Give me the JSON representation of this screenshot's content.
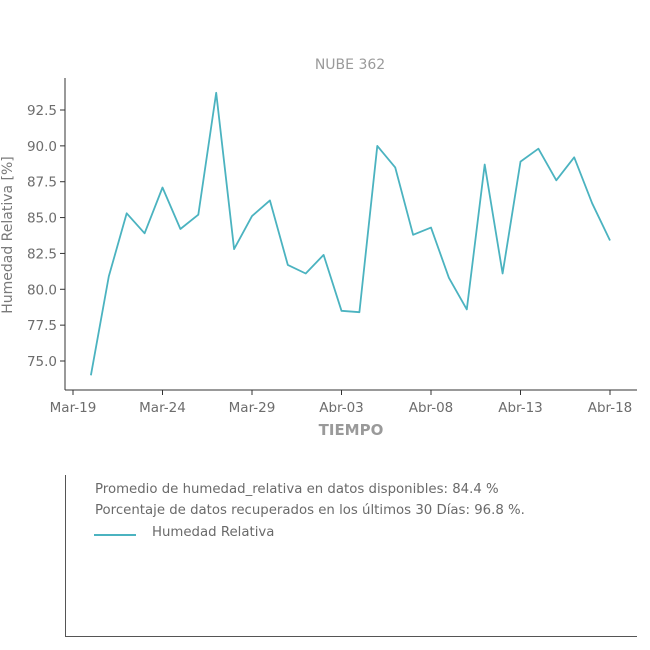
{
  "chart_data": {
    "type": "line",
    "title": "NUBE 362",
    "xlabel": "TIEMPO",
    "ylabel": "Humedad Relativa [%]",
    "x_ticks": [
      "Mar-19",
      "Mar-24",
      "Mar-29",
      "Abr-03",
      "Abr-08",
      "Abr-13",
      "Abr-18"
    ],
    "y_ticks": [
      "75.0",
      "77.5",
      "80.0",
      "82.5",
      "85.0",
      "87.5",
      "90.0",
      "92.5"
    ],
    "ylim": [
      73.0,
      95.0
    ],
    "xlim_days_note": "",
    "grid": false,
    "series": [
      {
        "name": "Humedad Relativa",
        "color": "#4bb3c0",
        "x": [
          "Mar-20",
          "Mar-21",
          "Mar-22",
          "Mar-23",
          "Mar-24",
          "Mar-25",
          "Mar-26",
          "Mar-27",
          "Mar-28",
          "Mar-29",
          "Mar-30",
          "Mar-31",
          "Abr-01",
          "Abr-02",
          "Abr-03",
          "Abr-04",
          "Abr-05",
          "Abr-06",
          "Abr-07",
          "Abr-08",
          "Abr-09",
          "Abr-10",
          "Abr-11",
          "Abr-12",
          "Abr-13",
          "Abr-14",
          "Abr-15",
          "Abr-16",
          "Abr-17",
          "Abr-18"
        ],
        "values": [
          74.0,
          80.9,
          85.3,
          83.9,
          87.1,
          84.2,
          85.2,
          93.7,
          82.8,
          85.1,
          86.2,
          81.7,
          81.1,
          82.4,
          78.5,
          78.4,
          90.0,
          88.5,
          83.8,
          84.3,
          80.8,
          78.6,
          88.7,
          81.1,
          88.9,
          89.8,
          87.6,
          89.2,
          86.0,
          83.4
        ]
      }
    ]
  },
  "info": {
    "line1": "Promedio de humedad_relativa en datos disponibles: 84.4 %",
    "line2": "Porcentaje de datos recuperados en los últimos 30 Días: 96.8 %.",
    "legend_label": "Humedad Relativa"
  }
}
